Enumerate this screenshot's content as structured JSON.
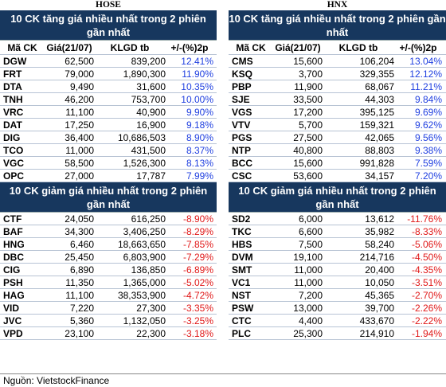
{
  "exchanges": [
    "HOSE",
    "HNX"
  ],
  "gain_title": "10 CK tăng giá nhiều nhất trong 2 phiên gần nhất",
  "loss_title": "10 CK giảm giá nhiều nhất trong 2 phiên gần nhất",
  "columns": [
    "Mã CK",
    "Giá(21/07)",
    "KLGD tb",
    "+/-(%)2p"
  ],
  "source": "Nguồn: VietstockFinance",
  "colors": {
    "header_bg": "#17375e",
    "gain": "#1f3fe0",
    "loss": "#e01818"
  },
  "hose": {
    "gainers": [
      [
        "DGW",
        "62,500",
        "839,200",
        "12.41%"
      ],
      [
        "FRT",
        "79,000",
        "1,890,300",
        "11.90%"
      ],
      [
        "DTA",
        "9,490",
        "31,600",
        "10.35%"
      ],
      [
        "TNH",
        "46,200",
        "753,700",
        "10.00%"
      ],
      [
        "VRC",
        "11,100",
        "40,900",
        "9.90%"
      ],
      [
        "DAT",
        "17,250",
        "16,900",
        "9.18%"
      ],
      [
        "DIG",
        "36,400",
        "10,686,503",
        "8.90%"
      ],
      [
        "TCO",
        "11,000",
        "431,500",
        "8.37%"
      ],
      [
        "VGC",
        "58,500",
        "1,526,300",
        "8.13%"
      ],
      [
        "OPC",
        "27,000",
        "17,787",
        "7.99%"
      ]
    ],
    "losers": [
      [
        "CTF",
        "24,050",
        "616,250",
        "-8.90%"
      ],
      [
        "BAF",
        "34,300",
        "3,406,250",
        "-8.29%"
      ],
      [
        "HNG",
        "6,460",
        "18,663,650",
        "-7.85%"
      ],
      [
        "DBC",
        "25,450",
        "6,803,900",
        "-7.29%"
      ],
      [
        "CIG",
        "6,890",
        "136,850",
        "-6.89%"
      ],
      [
        "PSH",
        "11,350",
        "1,365,000",
        "-5.02%"
      ],
      [
        "HAG",
        "11,100",
        "38,353,900",
        "-4.72%"
      ],
      [
        "VID",
        "7,220",
        "27,300",
        "-3.35%"
      ],
      [
        "JVC",
        "5,360",
        "1,132,050",
        "-3.25%"
      ],
      [
        "VPD",
        "23,100",
        "22,300",
        "-3.18%"
      ]
    ]
  },
  "hnx": {
    "gainers": [
      [
        "CMS",
        "15,600",
        "106,204",
        "13.04%"
      ],
      [
        "KSQ",
        "3,700",
        "329,355",
        "12.12%"
      ],
      [
        "PBP",
        "11,900",
        "68,067",
        "11.21%"
      ],
      [
        "SJE",
        "33,500",
        "44,303",
        "9.84%"
      ],
      [
        "VGS",
        "17,200",
        "395,125",
        "9.69%"
      ],
      [
        "VTV",
        "5,700",
        "159,321",
        "9.62%"
      ],
      [
        "PGS",
        "27,500",
        "42,065",
        "9.56%"
      ],
      [
        "NTP",
        "40,800",
        "88,803",
        "9.38%"
      ],
      [
        "BCC",
        "15,600",
        "991,828",
        "7.59%"
      ],
      [
        "CSC",
        "53,600",
        "34,157",
        "7.20%"
      ]
    ],
    "losers": [
      [
        "SD2",
        "6,000",
        "13,612",
        "-11.76%"
      ],
      [
        "TKC",
        "6,600",
        "35,982",
        "-8.33%"
      ],
      [
        "HBS",
        "7,500",
        "58,240",
        "-5.06%"
      ],
      [
        "DVM",
        "19,100",
        "214,716",
        "-4.50%"
      ],
      [
        "SMT",
        "11,000",
        "20,400",
        "-4.35%"
      ],
      [
        "VC1",
        "11,000",
        "10,050",
        "-3.51%"
      ],
      [
        "NST",
        "7,200",
        "45,365",
        "-2.70%"
      ],
      [
        "PSW",
        "13,000",
        "39,700",
        "-2.26%"
      ],
      [
        "CTC",
        "4,400",
        "433,670",
        "-2.22%"
      ],
      [
        "PLC",
        "25,300",
        "214,910",
        "-1.94%"
      ]
    ]
  }
}
